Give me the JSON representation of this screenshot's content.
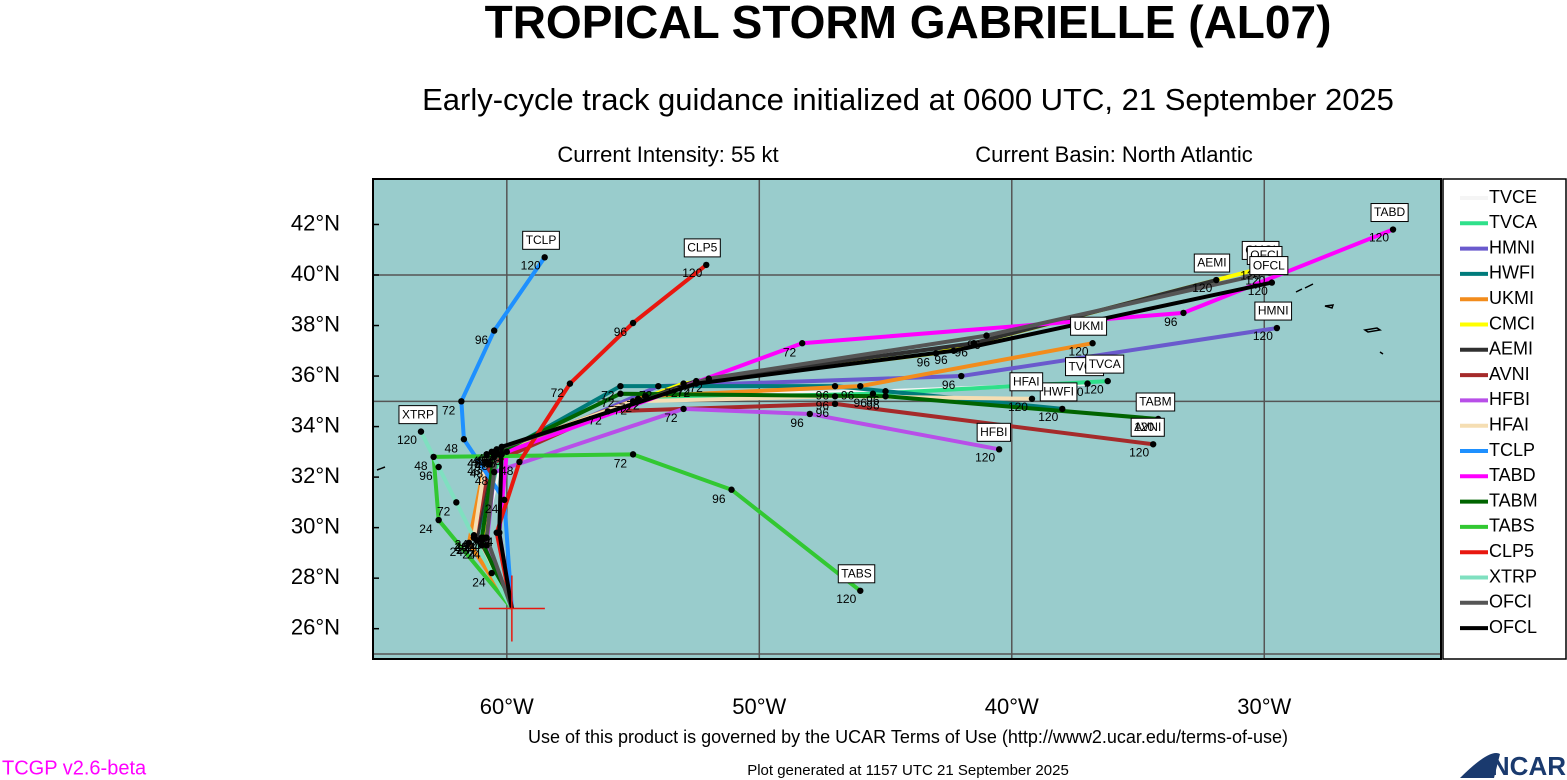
{
  "chart_data": {
    "type": "track",
    "title": "TROPICAL STORM GABRIELLE (AL07)",
    "subtitle": "Early-cycle track guidance initialized at 0600 UTC, 21 September 2025",
    "annotations": [
      "Current Intensity: 55 kt",
      "Current Basin: North Atlantic"
    ],
    "footer": "Use of this product is governed by the UCAR Terms of Use (http://www2.ucar.edu/terms-of-use)",
    "generated": "Plot generated at 1157 UTC   21 September 2025",
    "version": "TCGP v2.6-beta",
    "logo": "NCAR",
    "xlim": [
      -65.3,
      -23.0
    ],
    "ylim": [
      24.8,
      43.8
    ],
    "xticks": [
      {
        "value": -60,
        "label": "60°W"
      },
      {
        "value": -50,
        "label": "50°W"
      },
      {
        "value": -40,
        "label": "40°W"
      },
      {
        "value": -30,
        "label": "30°W"
      }
    ],
    "yticks": [
      {
        "value": 26,
        "label": "26°N"
      },
      {
        "value": 28,
        "label": "28°N"
      },
      {
        "value": 30,
        "label": "30°N"
      },
      {
        "value": 32,
        "label": "32°N"
      },
      {
        "value": 34,
        "label": "34°N"
      },
      {
        "value": 36,
        "label": "36°N"
      },
      {
        "value": 38,
        "label": "38°N"
      },
      {
        "value": 40,
        "label": "40°N"
      },
      {
        "value": 42,
        "label": "42°N"
      }
    ],
    "ygrid": [
      25,
      35,
      40
    ],
    "hours": [
      0,
      24,
      48,
      72,
      96,
      120
    ],
    "series": [
      {
        "name": "TVCE",
        "color": "#f5f5f5",
        "x": [
          -59.8,
          -60.9,
          -60.2,
          -54.5,
          -45,
          -37
        ],
        "y": [
          26.8,
          29.6,
          32.9,
          35.2,
          35.4,
          35.7
        ]
      },
      {
        "name": "TVCA",
        "color": "#2fe08a",
        "x": [
          -59.8,
          -61,
          -60.3,
          -54.8,
          -45.5,
          -36.2
        ],
        "y": [
          26.8,
          29.6,
          32.9,
          35.1,
          35.3,
          35.8
        ]
      },
      {
        "name": "HMNI",
        "color": "#6a5acd",
        "x": [
          -59.8,
          -61.3,
          -60.8,
          -54,
          -42,
          -29.5
        ],
        "y": [
          26.8,
          29.7,
          32.6,
          35.6,
          36,
          37.9
        ]
      },
      {
        "name": "HWFI",
        "color": "#007b7b",
        "x": [
          -59.8,
          -61.2,
          -60.5,
          -55.5,
          -47,
          -38
        ],
        "y": [
          26.8,
          29.5,
          32.8,
          35.6,
          35.6,
          34.7
        ]
      },
      {
        "name": "UKMI",
        "color": "#f28c1c",
        "x": [
          -59.8,
          -61.5,
          -60.8,
          -54.5,
          -46,
          -36.8
        ],
        "y": [
          26.8,
          29.4,
          32.9,
          35.2,
          35.6,
          37.3
        ]
      },
      {
        "name": "CMCI",
        "color": "#ffff00",
        "x": [
          -59.8,
          -61,
          -60.5,
          -53,
          -43,
          -30
        ],
        "y": [
          26.8,
          29.3,
          33,
          35.7,
          36.9,
          40.3
        ]
      },
      {
        "name": "AEMI",
        "color": "#303030",
        "x": [
          -59.8,
          -61.2,
          -60.6,
          -52.5,
          -41.5,
          -31.9
        ],
        "y": [
          26.8,
          29.5,
          33,
          35.8,
          37.3,
          39.8
        ]
      },
      {
        "name": "AVNI",
        "color": "#a52a2a",
        "x": [
          -59.8,
          -61.3,
          -60.7,
          -56,
          -47,
          -34.4
        ],
        "y": [
          26.8,
          29.6,
          32.5,
          34.6,
          34.9,
          33.3
        ]
      },
      {
        "name": "HFBI",
        "color": "#b84fe8",
        "x": [
          -59.8,
          -60.8,
          -60.5,
          -53,
          -48,
          -40.5
        ],
        "y": [
          26.8,
          29.3,
          32.2,
          34.7,
          34.5,
          33.1
        ]
      },
      {
        "name": "HFAI",
        "color": "#f5deb3",
        "x": [
          -59.8,
          -61.3,
          -60.8,
          -55,
          -47,
          -39.2
        ],
        "y": [
          26.8,
          29.6,
          32.9,
          35,
          35.2,
          35.1
        ]
      },
      {
        "name": "TCLP",
        "color": "#1e90ff",
        "x": [
          -59.8,
          -60.1,
          -61.7,
          -61.8,
          -60.5,
          -58.5
        ],
        "y": [
          26.8,
          31.1,
          33.5,
          35,
          37.8,
          40.7
        ]
      },
      {
        "name": "TABD",
        "color": "#ff00ff",
        "x": [
          -59.8,
          -60.3,
          -60,
          -48.3,
          -33.2,
          -24.9
        ],
        "y": [
          26.8,
          29.8,
          33,
          37.3,
          38.5,
          41.8
        ]
      },
      {
        "name": "TABM",
        "color": "#006400",
        "x": [
          -59.8,
          -61,
          -60.5,
          -55.5,
          -45,
          -34.2
        ],
        "y": [
          26.8,
          29.5,
          32.9,
          35.3,
          35.2,
          34.3
        ]
      },
      {
        "name": "TABS",
        "color": "#32c832",
        "x": [
          -59.8,
          -62.7,
          -62.9,
          -55,
          -51.1,
          -46
        ],
        "y": [
          26.8,
          30.3,
          32.8,
          32.9,
          31.5,
          27.5
        ]
      },
      {
        "name": "CLP5",
        "color": "#e8170f",
        "x": [
          -59.8,
          -60.4,
          -59.5,
          -57.5,
          -55,
          -52.1
        ],
        "y": [
          26.8,
          29.8,
          32.6,
          35.7,
          38.1,
          40.4
        ]
      },
      {
        "name": "XTRP",
        "color": "#7fe0c0",
        "x": [
          -59.8,
          -60.6,
          -61.3,
          -62,
          -62.7,
          -63.4
        ],
        "y": [
          26.8,
          28.2,
          29.6,
          31,
          32.4,
          33.8
        ]
      },
      {
        "name": "OFCI",
        "color": "#555555",
        "x": [
          -59.8,
          -60.8,
          -60.4,
          -52,
          -41,
          -29.8
        ],
        "y": [
          26.8,
          29.6,
          33.1,
          35.9,
          37.6,
          40.1
        ]
      },
      {
        "name": "OFCL",
        "color": "#000000",
        "x": [
          -59.8,
          -60.3,
          -60.2,
          -52.5,
          -42.3,
          -29.7
        ],
        "y": [
          26.8,
          29.8,
          33.2,
          35.7,
          37,
          39.7
        ]
      }
    ]
  }
}
